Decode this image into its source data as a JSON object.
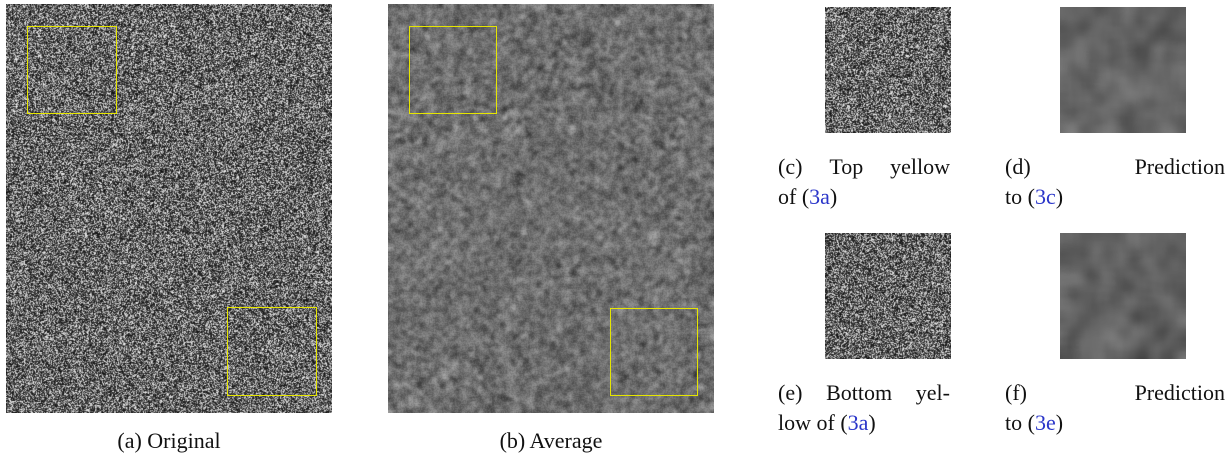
{
  "panels": {
    "a": {
      "caption": "(a) Original"
    },
    "b": {
      "caption": "(b) Average"
    },
    "c": {
      "caption_line1": [
        "(c)",
        "Top",
        "yellow"
      ],
      "caption_pre": "of (",
      "ref": "3a",
      "caption_post": ")"
    },
    "d": {
      "caption_line1": [
        "(d)",
        "Prediction"
      ],
      "caption_pre": "to (",
      "ref": "3c",
      "caption_post": ")"
    },
    "e": {
      "caption_line1": [
        "(e)",
        "Bottom",
        "yel-"
      ],
      "caption_pre": "low of (",
      "ref": "3a",
      "caption_post": ")"
    },
    "f": {
      "caption_line1": [
        "(f)",
        "Prediction"
      ],
      "caption_pre": "to (",
      "ref": "3e",
      "caption_post": ")"
    }
  },
  "colors": {
    "highlight_box": "#e6e600",
    "reference_link": "#2a35c9"
  }
}
